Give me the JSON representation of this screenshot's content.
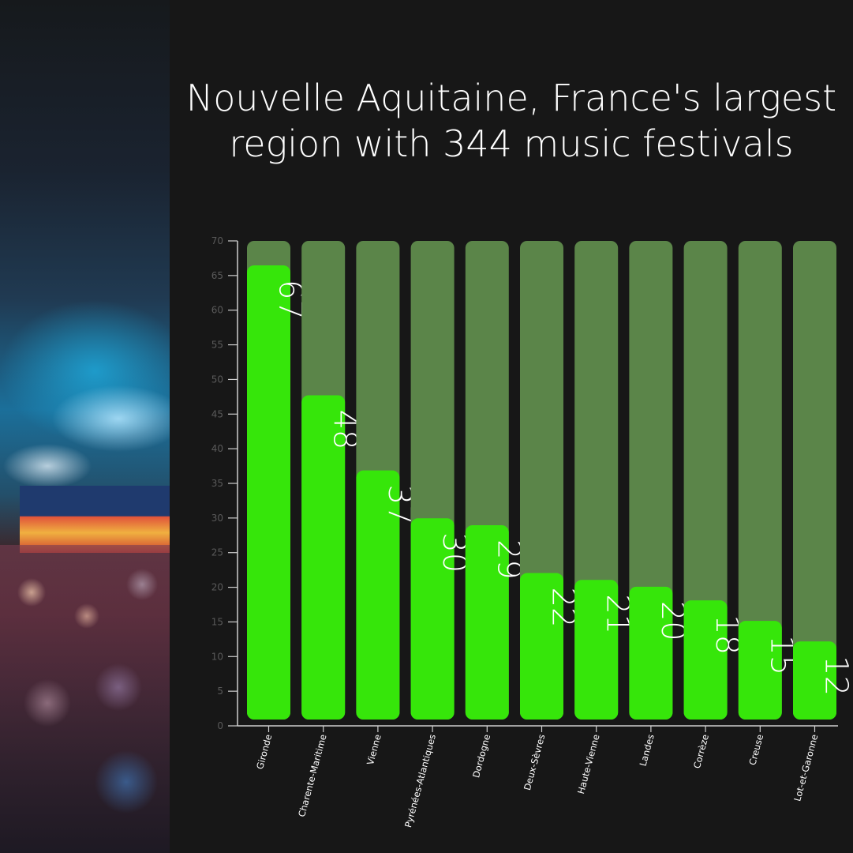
{
  "chart_data": {
    "type": "bar",
    "title": "Nouvelle Aquitaine, France's largest region with 344 music festivals",
    "categories": [
      "Gironde",
      "Charente-Maritime",
      "Vienne",
      "Pyrénées-Atlantiques",
      "Dordogne",
      "Deux-Sèvres",
      "Haute-Vienne",
      "Landes",
      "Corrèze",
      "Creuse",
      "Lot-et-Garonne"
    ],
    "values": [
      67,
      48,
      37,
      30,
      29,
      22,
      21,
      20,
      18,
      15,
      12
    ],
    "ylim": [
      0,
      70
    ],
    "yticks": [
      0,
      5,
      10,
      15,
      20,
      25,
      30,
      35,
      40,
      45,
      50,
      55,
      60,
      65,
      70
    ],
    "xlabel": "",
    "ylabel": "",
    "grid": false,
    "data_labels": "inside bars, rotated",
    "colors": {
      "bar": "#36e60a",
      "bar_background": "#5b8549",
      "background": "#171717",
      "text": "#ffffff",
      "tick_text": "#5a5a5a"
    }
  }
}
